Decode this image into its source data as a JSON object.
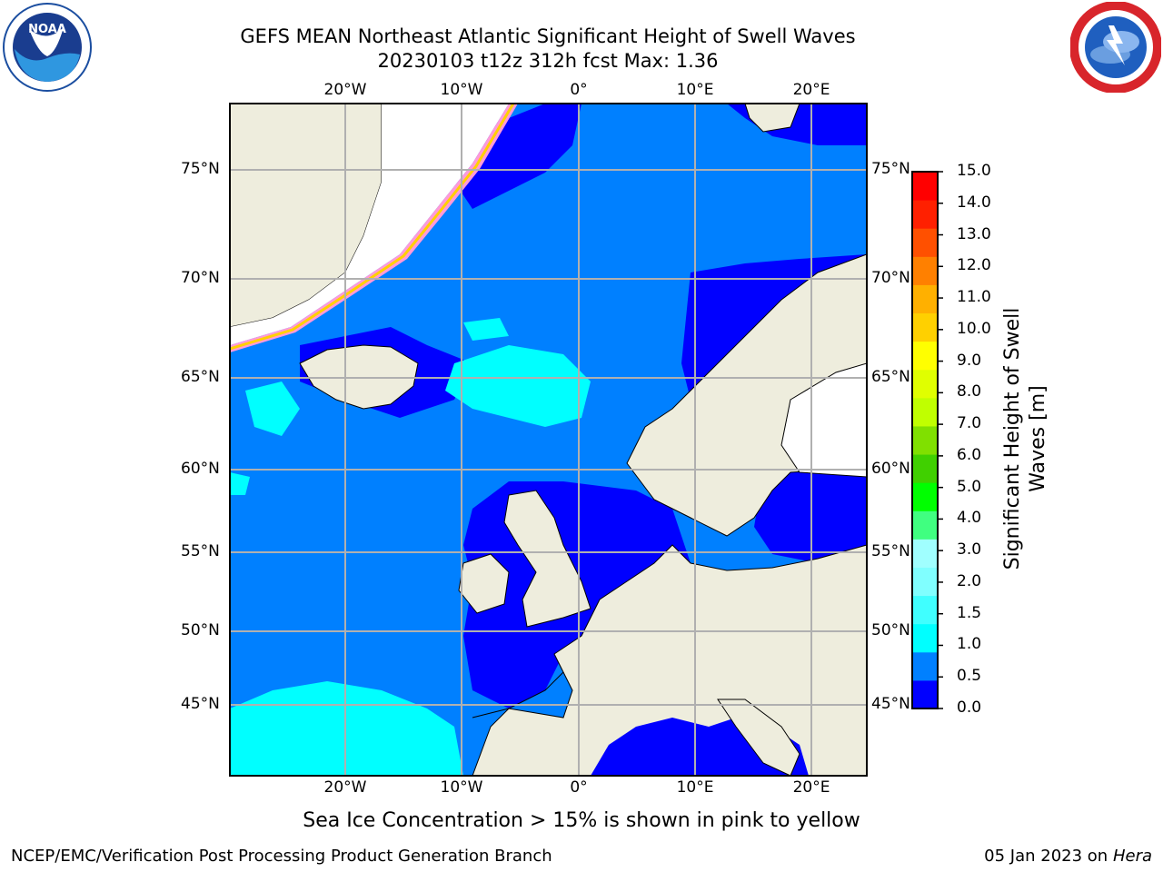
{
  "header": {
    "title_line1": "GEFS MEAN Northeast Atlantic Significant Height of Swell Waves",
    "title_line2": "20230103 t12z 312h fcst   Max: 1.36"
  },
  "logos": {
    "left": "noaa-logo",
    "right": "national-weather-service-logo"
  },
  "map": {
    "region": "Northeast Atlantic",
    "lon_labels": [
      "20°W",
      "10°W",
      "0°",
      "10°E",
      "20°E"
    ],
    "lat_labels": [
      "75°N",
      "70°N",
      "65°N",
      "60°N",
      "55°N",
      "50°N",
      "45°N"
    ],
    "colors": {
      "land": "#eeeddd",
      "ice": "#ffffff",
      "grid": "#b0b0b0"
    }
  },
  "colorbar": {
    "label": "Significant Height of Swell Waves [m]",
    "ticks": [
      "15.0",
      "14.0",
      "13.0",
      "12.0",
      "11.0",
      "10.0",
      "9.0",
      "8.0",
      "7.0",
      "6.0",
      "5.0",
      "4.0",
      "3.0",
      "2.0",
      "1.5",
      "1.0",
      "0.5",
      "0.0"
    ],
    "colors": [
      "#0000ff",
      "#0080ff",
      "#00ffff",
      "#40ffff",
      "#80ffff",
      "#a0ffff",
      "#40ff80",
      "#00ff00",
      "#40d000",
      "#80e000",
      "#c0ff00",
      "#e0ff00",
      "#ffff00",
      "#ffd000",
      "#ffb000",
      "#ff8000",
      "#ff5000",
      "#ff2000",
      "#ff0000"
    ]
  },
  "note": "Sea Ice Concentration > 15% is shown in pink to yellow",
  "footer": {
    "left": "NCEP/EMC/Verification Post Processing Product Generation Branch",
    "right_date": "05 Jan 2023 on ",
    "right_host": "Hera"
  }
}
